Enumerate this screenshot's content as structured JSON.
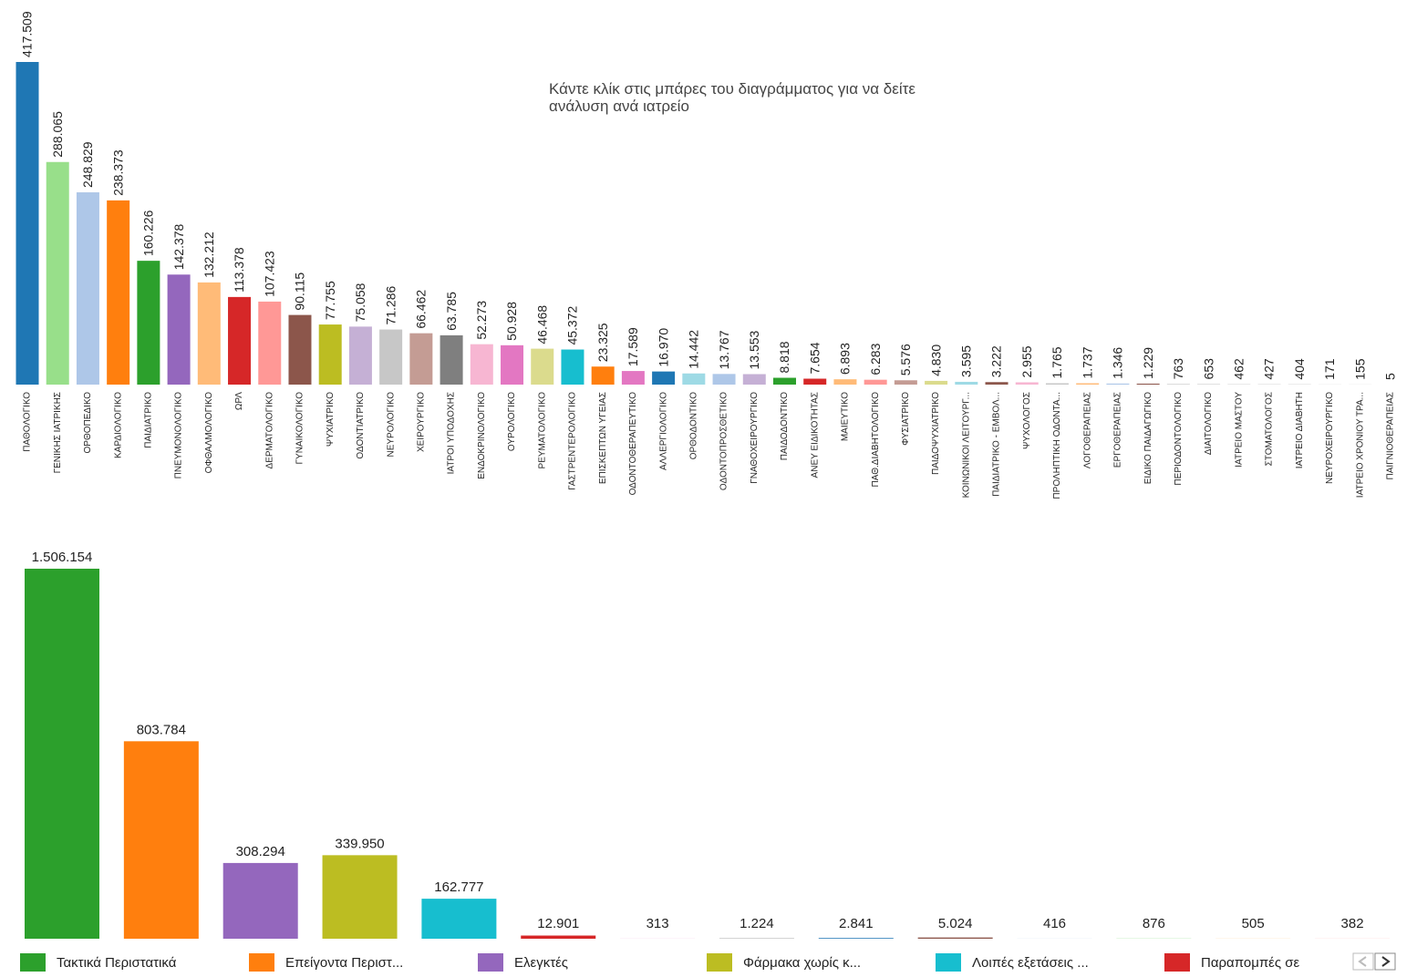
{
  "chart_data": [
    {
      "type": "bar",
      "annotation": [
        "Κάντε κλίκ στις μπάρες του διαγράμματος για να δείτε",
        "ανάλυση ανά ιατρείο"
      ],
      "categories": [
        "ΠΑΘΟΛΟΓΙΚΟ",
        "ΓΕΝΙΚΗΣ ΙΑΤΡΙΚΗΣ",
        "ΟΡΘΟΠΕΔΙΚΟ",
        "ΚΑΡΔΙΟΛΟΓΙΚΟ",
        "ΠΑΙΔΙΑΤΡΙΚΟ",
        "ΠΝΕΥΜΟΝΟΛΟΓΙΚΟ",
        "ΟΦΘΑΛΜΟΛΟΓΙΚΟ",
        "ΩΡΛ",
        "ΔΕΡΜΑΤΟΛΟΓΙΚΟ",
        "ΓΥΝΑΙΚΟΛΟΓΙΚΟ",
        "ΨΥΧΙΑΤΡΙΚΟ",
        "ΟΔΟΝΤΙΑΤΡΙΚΟ",
        "ΝΕΥΡΟΛΟΓΙΚΟ",
        "ΧΕΙΡΟΥΡΓΙΚΟ",
        "ΙΑΤΡΟΙ ΥΠΟΔΟΧΗΣ",
        "ΕΝΔΟΚΡΙΝΟΛΟΓΙΚΟ",
        "ΟΥΡΟΛΟΓΙΚΟ",
        "ΡΕΥΜΑΤΟΛΟΓΙΚΟ",
        "ΓΑΣΤΡΕΝΤΕΡΟΛΟΓΙΚΟ",
        "ΕΠΙΣΚΕΠΤΩΝ ΥΓΕΙΑΣ",
        "ΟΔΟΝΤΟΘΕΡΑΠΕΥΤΙΚΟ",
        "ΑΛΛΕΡΓΙΟΛΟΓΙΚΟ",
        "ΟΡΘΟΔΟΝΤΙΚΟ",
        "ΟΔΟΝΤΟΠΡΟΣΘΕΤΙΚΟ",
        "ΓΝΑΘΟΧΕΙΡΟΥΡΓΙΚΟ",
        "ΠΑΙΔΟΔΟΝΤΙΚΟ",
        "ΑΝΕΥ ΕΙΔΙΚΟΤΗΤΑΣ",
        "ΜΑΙΕΥΤΙΚΟ",
        "ΠΑΘ.ΔΙΑΒΗΤΟΛΟΓΙΚΟ",
        "ΦΥΣΙΑΤΡΙΚΟ",
        "ΠΑΙΔΟΨΥΧΙΑΤΡΙΚΟ",
        "ΚΟΙΝΩΝΙΚΟΙ ΛΕΙΤΟΥΡΓ...",
        "ΠΑΙΔΙΑΤΡΙΚΟ - ΕΜΒΟΛ...",
        "ΨΥΧΟΛΟΓΟΣ",
        "ΠΡΟΛΗΠΤΙΚΗ ΟΔΟΝΤΑ...",
        "ΛΟΓΟΘΕΡΑΠΕΙΑΣ",
        "ΕΡΓΟΘΕΡΑΠΕΙΑΣ",
        "ΕΙΔΙΚΟ ΠΑΙΔΑΓΩΓΙΚΟ",
        "ΠΕΡΙΟΔΟΝΤΟΛΟΓΙΚΟ",
        "ΔΙΑΙΤΟΛΟΓΙΚΟ",
        "ΙΑΤΡΕΙΟ ΜΑΣΤΟΥ",
        "ΣΤΟΜΑΤΟΛΟΓΟΣ",
        "ΙΑΤΡΕΙΟ ΔΙΑΒΗΤΗ",
        "ΝΕΥΡΟΧΕΙΡΟΥΡΓΙΚΟ",
        "ΙΑΤΡΕΙΟ ΧΡΟΝΙΟΥ ΤΡΑ...",
        "ΠΑΙΓΝΙΟΘΕΡΑΠΕΙΑΣ"
      ],
      "values": [
        417509,
        288065,
        248829,
        238373,
        160226,
        142378,
        132212,
        113378,
        107423,
        90115,
        77755,
        75058,
        71286,
        66462,
        63785,
        52273,
        50928,
        46468,
        45372,
        23325,
        17589,
        16970,
        14442,
        13767,
        13553,
        8818,
        7654,
        6893,
        6283,
        5576,
        4830,
        3595,
        3222,
        2955,
        1765,
        1737,
        1346,
        1229,
        763,
        653,
        462,
        427,
        404,
        171,
        155,
        5
      ],
      "value_labels": [
        "417.509",
        "288.065",
        "248.829",
        "238.373",
        "160.226",
        "142.378",
        "132.212",
        "113.378",
        "107.423",
        "90.115",
        "77.755",
        "75.058",
        "71.286",
        "66.462",
        "63.785",
        "52.273",
        "50.928",
        "46.468",
        "45.372",
        "23.325",
        "17.589",
        "16.970",
        "14.442",
        "13.767",
        "13.553",
        "8.818",
        "7.654",
        "6.893",
        "6.283",
        "5.576",
        "4.830",
        "3.595",
        "3.222",
        "2.955",
        "1.765",
        "1.737",
        "1.346",
        "1.229",
        "763",
        "653",
        "462",
        "427",
        "404",
        "171",
        "155",
        "5"
      ],
      "colors": [
        "#1f77b4",
        "#98df8a",
        "#aec7e8",
        "#ff7f0e",
        "#2ca02c",
        "#9467bd",
        "#ffbb78",
        "#d62728",
        "#ff9896",
        "#8c564b",
        "#bcbd22",
        "#c5b0d5",
        "#c7c7c7",
        "#c49c94",
        "#7f7f7f",
        "#f7b6d2",
        "#e377c2",
        "#dbdb8d",
        "#17becf",
        "#ff7f0e",
        "#e377c2",
        "#1f77b4",
        "#9edae5",
        "#aec7e8",
        "#c5b0d5",
        "#2ca02c",
        "#d62728",
        "#ffbb78",
        "#ff9896",
        "#c49c94",
        "#dbdb8d",
        "#9edae5",
        "#8c564b",
        "#f7b6d2",
        "#c7c7c7",
        "#ffbb78",
        "#aec7e8",
        "#8c564b",
        "#c7c7c7",
        "#c7c7c7",
        "#c7c7c7",
        "#c7c7c7",
        "#c7c7c7",
        "#c7c7c7",
        "#c7c7c7",
        "#c7c7c7"
      ],
      "ylim": [
        0,
        417509
      ]
    },
    {
      "type": "bar",
      "categories": [
        "Τακτικά Περιστατικά",
        "Επείγοντα Περιστ...",
        "Ελεγκτές",
        "Φάρμακα χωρίς κ...",
        "Λοιπές εξετάσεις ...",
        "Παραπομπές σε",
        null,
        null,
        null,
        null,
        null,
        null,
        null,
        null
      ],
      "values": [
        1506154,
        803784,
        308294,
        339950,
        162777,
        12901,
        313,
        1224,
        2841,
        5024,
        416,
        876,
        505,
        382
      ],
      "value_labels": [
        "1.506.154",
        "803.784",
        "308.294",
        "339.950",
        "162.777",
        "12.901",
        "313",
        "1.224",
        "2.841",
        "5.024",
        "416",
        "876",
        "505",
        "382"
      ],
      "colors": [
        "#2ca02c",
        "#ff7f0e",
        "#9467bd",
        "#bcbd22",
        "#17becf",
        "#d62728",
        "#e377c2",
        "#7f7f7f",
        "#1f77b4",
        "#8c564b",
        "#aec7e8",
        "#98df8a",
        "#ffbb78",
        "#ff9896"
      ],
      "ylim": [
        0,
        1506154
      ]
    }
  ]
}
